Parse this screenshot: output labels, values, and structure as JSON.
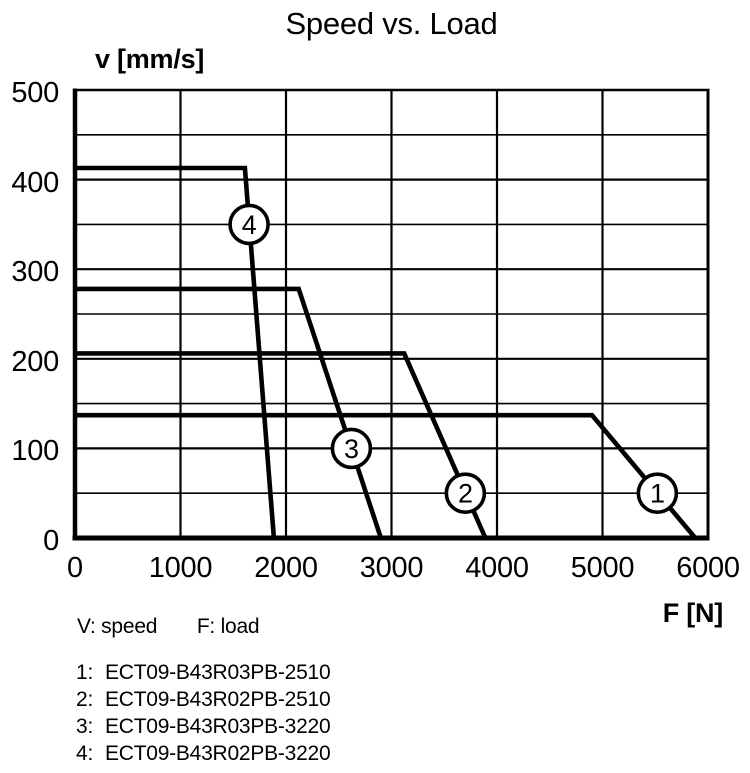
{
  "page": {
    "note": {
      "speed": "V: speed",
      "load": "F: load"
    }
  },
  "chart_data": {
    "type": "line",
    "title": "Speed vs. Load",
    "xlabel": "F [N]",
    "ylabel": "v [mm/s]",
    "xlim": [
      0,
      6000
    ],
    "ylim": [
      0,
      500
    ],
    "x_ticks": [
      0,
      1000,
      2000,
      3000,
      4000,
      5000,
      6000
    ],
    "y_ticks": [
      0,
      100,
      200,
      300,
      400,
      500
    ],
    "x_gridline_step": 1000,
    "y_gridline_minor_step": 50,
    "y_gridline_major_step": 100,
    "grid": true,
    "line_color": "#000000",
    "background_color": "#ffffff",
    "legend_position": "below-left",
    "series": [
      {
        "id": "1",
        "name": "ECT09-B43R03PB-2510",
        "points_F_v": [
          [
            0,
            137
          ],
          [
            4900,
            137
          ],
          [
            5880,
            0
          ]
        ],
        "marker_label": "1",
        "marker_at_F_v": [
          5520,
          50
        ]
      },
      {
        "id": "2",
        "name": "ECT09-B43R02PB-2510",
        "points_F_v": [
          [
            0,
            206
          ],
          [
            3120,
            206
          ],
          [
            3890,
            0
          ]
        ],
        "marker_label": "2",
        "marker_at_F_v": [
          3700,
          50
        ]
      },
      {
        "id": "3",
        "name": "ECT09-B43R03PB-3220",
        "points_F_v": [
          [
            0,
            278
          ],
          [
            2120,
            278
          ],
          [
            2900,
            0
          ]
        ],
        "marker_label": "3",
        "marker_at_F_v": [
          2620,
          100
        ]
      },
      {
        "id": "4",
        "name": "ECT09-B43R02PB-3220",
        "points_F_v": [
          [
            0,
            413
          ],
          [
            1610,
            413
          ],
          [
            1885,
            0
          ]
        ],
        "marker_label": "4",
        "marker_at_F_v": [
          1650,
          350
        ]
      }
    ],
    "legend": [
      {
        "num": "1:",
        "model": "ECT09-B43R03PB-2510"
      },
      {
        "num": "2:",
        "model": "ECT09-B43R02PB-2510"
      },
      {
        "num": "3:",
        "model": "ECT09-B43R03PB-3220"
      },
      {
        "num": "4:",
        "model": "ECT09-B43R02PB-3220"
      }
    ]
  }
}
